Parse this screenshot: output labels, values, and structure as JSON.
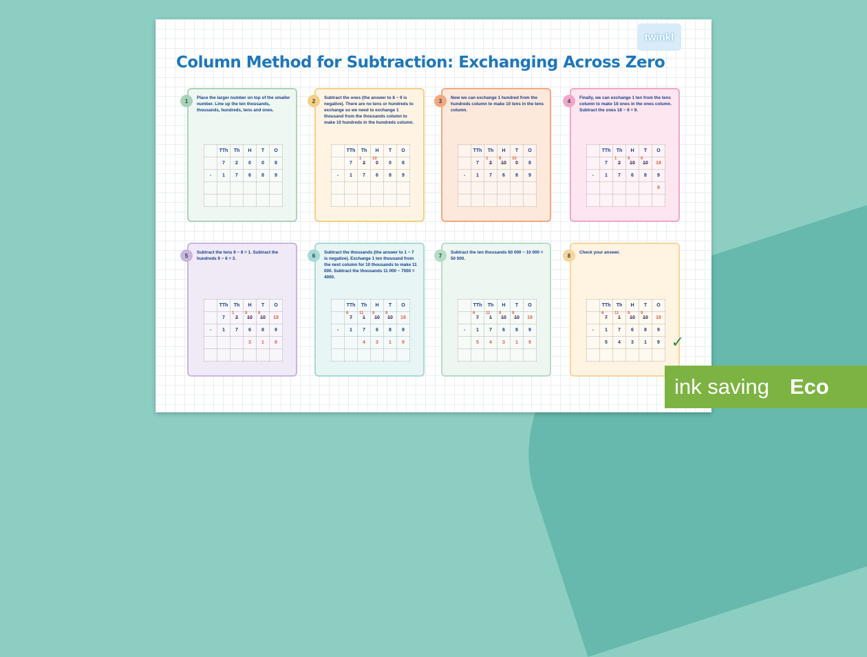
{
  "title": "Column Method for Subtraction: Exchanging Across Zero",
  "logo": "twinkl",
  "badge": {
    "text": "ink saving",
    "eco": "Eco",
    "color": "#7cb342"
  },
  "headers": [
    "",
    "TTh",
    "Th",
    "H",
    "T",
    "O"
  ],
  "cards": [
    {
      "n": "1",
      "color": "#a9d3b8",
      "bg": "#eef7f1",
      "text": "Place the larger number on top of the smaller number. Line up the ten thousands, thousands, hundreds, tens and ones.",
      "top": [
        "",
        "7",
        "2",
        "0",
        "0",
        "8"
      ],
      "bottom": [
        "-",
        "1",
        "7",
        "6",
        "8",
        "9"
      ],
      "answer": [
        "",
        "",
        "",
        "",
        "",
        ""
      ]
    },
    {
      "n": "2",
      "color": "#f5cf85",
      "bg": "#fff4e3",
      "text": "Subtract the ones (the answer to 8 − 9 is negative). There are no tens or hundreds to exchange so we need to exchange 1 thousand from the thousands column to make 10 hundreds in the hundreds column.",
      "top": [
        "",
        "7",
        {
          "old": "2",
          "new": "1"
        },
        {
          "old": "0",
          "new": "10"
        },
        "0",
        "8"
      ],
      "bottom": [
        "-",
        "1",
        "7",
        "6",
        "8",
        "9"
      ],
      "answer": [
        "",
        "",
        "",
        "",
        "",
        ""
      ]
    },
    {
      "n": "3",
      "color": "#f5a77e",
      "bg": "#fde9dc",
      "text": "Now we can exchange 1 hundred from the hundreds column to make 10 tens in the tens column.",
      "top": [
        "",
        "7",
        {
          "old": "2",
          "new": "1"
        },
        {
          "old": "10",
          "new": "9"
        },
        {
          "old": "0",
          "new": "10"
        },
        "8"
      ],
      "bottom": [
        "-",
        "1",
        "7",
        "6",
        "8",
        "9"
      ],
      "answer": [
        "",
        "",
        "",
        "",
        "",
        ""
      ]
    },
    {
      "n": "4",
      "color": "#f0a6c8",
      "bg": "#fde6ef",
      "text": "Finally, we can exchange 1 ten from the tens column to make 18 ones in the ones column. Subtract the ones 18 − 9 = 9.",
      "top": [
        "",
        "7",
        {
          "old": "2",
          "new": "1"
        },
        {
          "old": "10",
          "new": "9"
        },
        {
          "old": "10",
          "new": "9"
        },
        "18"
      ],
      "bottom": [
        "-",
        "1",
        "7",
        "6",
        "8",
        "9"
      ],
      "answer": [
        "",
        "",
        "",
        "",
        "",
        "9"
      ]
    },
    {
      "n": "5",
      "color": "#c9b5dd",
      "bg": "#f0eaf6",
      "text": "Subtract the tens 9 − 8 = 1. Subtract the hundreds 9 − 6 = 3.",
      "top": [
        "",
        "7",
        {
          "old": "2",
          "new": "1"
        },
        {
          "old": "10",
          "new": "9"
        },
        {
          "old": "10",
          "new": "9"
        },
        "18"
      ],
      "bottom": [
        "-",
        "1",
        "7",
        "6",
        "8",
        "9"
      ],
      "answer": [
        "",
        "",
        "",
        "3",
        "1",
        "9"
      ]
    },
    {
      "n": "6",
      "color": "#a8d9d6",
      "bg": "#e7f5f4",
      "text": "Subtract the thousands (the answer to 1 − 7 is negative). Exchange 1 ten thousand from the next column for 10 thousands to make 11 000. Subtract the thousands 11 000 − 7000 = 4000.",
      "top": [
        "",
        {
          "old": "7",
          "new": "6"
        },
        {
          "old": "1",
          "new": "11"
        },
        {
          "old": "10",
          "new": "9"
        },
        {
          "old": "10",
          "new": "9"
        },
        "18"
      ],
      "bottom": [
        "-",
        "1",
        "7",
        "6",
        "8",
        "9"
      ],
      "answer": [
        "",
        "",
        "4",
        "3",
        "1",
        "9"
      ]
    },
    {
      "n": "7",
      "color": "#b7dcc6",
      "bg": "#edf6f1",
      "text": "Subtract the ten thousands 60 000 − 10 000 = 50 000.",
      "top": [
        "",
        {
          "old": "7",
          "new": "6"
        },
        {
          "old": "1",
          "new": "11"
        },
        {
          "old": "10",
          "new": "9"
        },
        {
          "old": "10",
          "new": "9"
        },
        "18"
      ],
      "bottom": [
        "-",
        "1",
        "7",
        "6",
        "8",
        "9"
      ],
      "answer": [
        "",
        "5",
        "4",
        "3",
        "1",
        "9"
      ]
    },
    {
      "n": "8",
      "color": "#f7d59a",
      "bg": "#fff3e1",
      "text": "Check your answer.",
      "top": [
        "",
        {
          "old": "7",
          "new": "6"
        },
        {
          "old": "1",
          "new": "11"
        },
        {
          "old": "10",
          "new": "9"
        },
        {
          "old": "10",
          "new": "9"
        },
        "18"
      ],
      "bottom": [
        "-",
        "1",
        "7",
        "6",
        "8",
        "9"
      ],
      "answer": [
        "",
        "5",
        "4",
        "3",
        "1",
        "9"
      ],
      "check": "✓"
    }
  ]
}
